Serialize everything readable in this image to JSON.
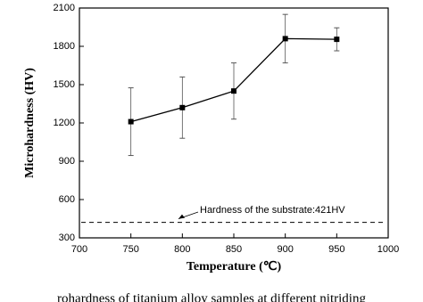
{
  "chart_data": {
    "type": "line",
    "xlabel": "Temperature (℃)",
    "ylabel": "Microhardness (HV)",
    "x": [
      750,
      800,
      850,
      900,
      950
    ],
    "series": [
      {
        "name": "Microhardness",
        "color": "#000000",
        "values": [
          1210,
          1320,
          1450,
          1860,
          1855
        ],
        "errors": [
          265,
          240,
          220,
          190,
          90
        ]
      }
    ],
    "xlim": [
      700,
      1000
    ],
    "xticks": [
      700,
      750,
      800,
      850,
      900,
      950,
      1000
    ],
    "ylim": [
      300,
      2100
    ],
    "yticks": [
      300,
      600,
      900,
      1200,
      1500,
      1800,
      2100
    ],
    "reference_line": {
      "value": 421,
      "label": "Hardness of the substrate:421HV"
    },
    "caption": "rohardness of titanium alloy samples at different nitriding"
  }
}
